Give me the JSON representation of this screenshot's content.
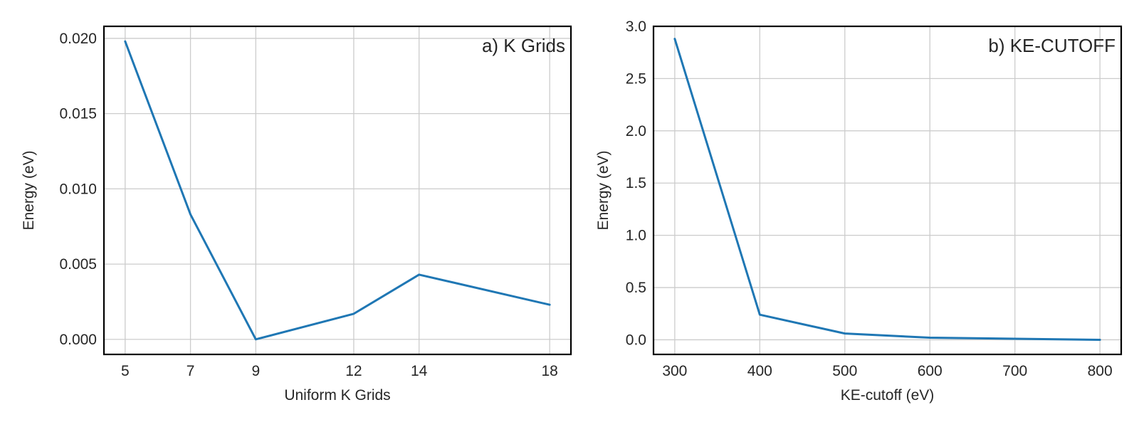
{
  "colors": {
    "series": "#1f77b4",
    "grid": "#cccccc",
    "frame": "#000000",
    "text": "#262626",
    "background": "#ffffff"
  },
  "chart_data": [
    {
      "type": "line",
      "annotation": "a) K Grids",
      "annotation_position": "top-right",
      "xlabel": "Uniform K Grids",
      "ylabel": "Energy (eV)",
      "x": [
        5,
        7,
        9,
        12,
        14,
        18
      ],
      "y": [
        0.0198,
        0.0083,
        0.0,
        0.0017,
        0.0043,
        0.0023
      ],
      "xlim": [
        4.35,
        18.65
      ],
      "ylim": [
        -0.001,
        0.0208
      ],
      "xticks": [
        5,
        7,
        9,
        12,
        14,
        18
      ],
      "xtick_labels": [
        "5",
        "7",
        "9",
        "12",
        "14",
        "18"
      ],
      "yticks": [
        0.0,
        0.005,
        0.01,
        0.015,
        0.02
      ],
      "ytick_labels": [
        "0.000",
        "0.005",
        "0.010",
        "0.015",
        "0.020"
      ],
      "grid": true,
      "legend": false
    },
    {
      "type": "line",
      "annotation": "b) KE-CUTOFF",
      "annotation_position": "top-right",
      "xlabel": "KE-cutoff (eV)",
      "ylabel": "Energy (eV)",
      "x": [
        300,
        400,
        500,
        600,
        700,
        800
      ],
      "y": [
        2.88,
        0.24,
        0.06,
        0.02,
        0.01,
        0.0
      ],
      "xlim": [
        275,
        825
      ],
      "ylim": [
        -0.14,
        3.0
      ],
      "xticks": [
        300,
        400,
        500,
        600,
        700,
        800
      ],
      "xtick_labels": [
        "300",
        "400",
        "500",
        "600",
        "700",
        "800"
      ],
      "yticks": [
        0.0,
        0.5,
        1.0,
        1.5,
        2.0,
        2.5,
        3.0
      ],
      "ytick_labels": [
        "0.0",
        "0.5",
        "1.0",
        "1.5",
        "2.0",
        "2.5",
        "3.0"
      ],
      "grid": true,
      "legend": false
    }
  ]
}
